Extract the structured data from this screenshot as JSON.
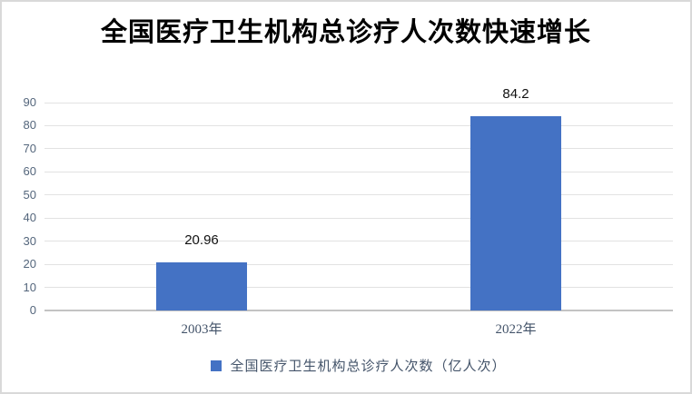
{
  "chart_data": {
    "type": "bar",
    "title": "全国医疗卫生机构总诊疗人次数快速增长",
    "categories": [
      "2003年",
      "2022年"
    ],
    "values": [
      20.96,
      84.2
    ],
    "value_labels": [
      "20.96",
      "84.2"
    ],
    "series_name": "全国医疗卫生机构总诊疗人次数（亿人次）",
    "xlabel": "",
    "ylabel": "",
    "ylim": [
      0,
      90
    ],
    "yticks": [
      0,
      10,
      20,
      30,
      40,
      50,
      60,
      70,
      80,
      90
    ],
    "grid": true,
    "legend_position": "bottom",
    "colors": {
      "bar": "#4472C4",
      "legend_marker": "#4472C4",
      "title_text": "#000000",
      "value_label_text": "#111111",
      "axis_label_text": "#44546A",
      "gridline": "#e2e2e2",
      "background": "#ffffff"
    }
  }
}
